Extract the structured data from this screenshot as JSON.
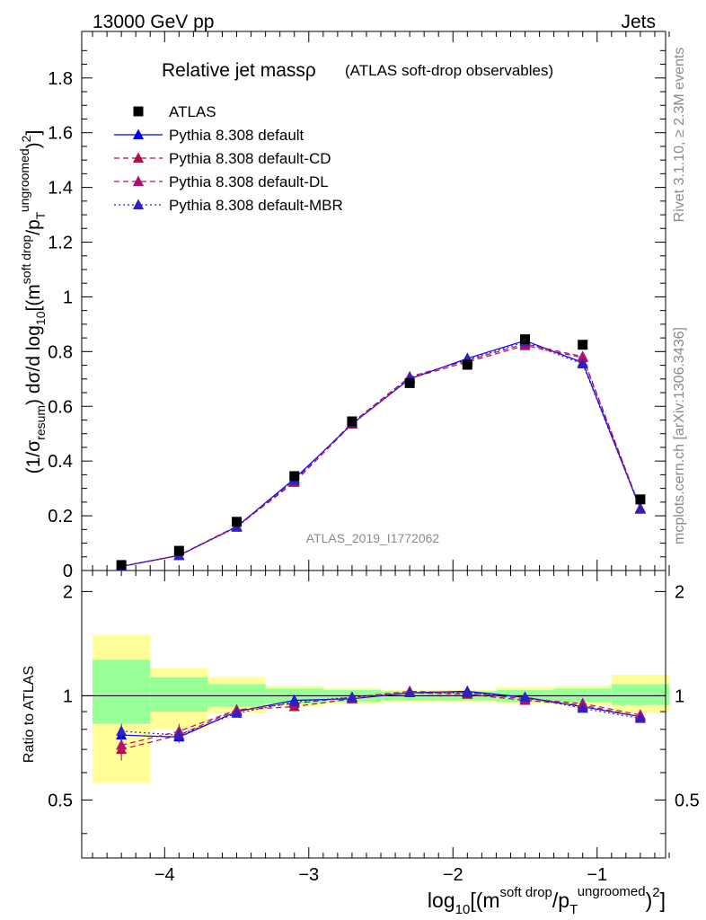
{
  "header": {
    "left": "13000 GeV pp",
    "right": "Jets"
  },
  "plot_title": {
    "main": "Relative jet massρ",
    "sub": "(ATLAS soft-drop observables)"
  },
  "watermark": "ATLAS_2019_I1772062",
  "side_labels": {
    "rivet": "Rivet 3.1.10, ≥ 2.3M events",
    "mcplots": "mcplots.cern.ch [arXiv:1306.3436]"
  },
  "colors": {
    "data": "#000000",
    "default": "#0000ff",
    "cd": "#b01040",
    "dl": "#b01070",
    "mbr": "#3020c0",
    "band_inner": "#99ff99",
    "band_outer": "#ffff99"
  },
  "chart_data": [
    {
      "type": "line",
      "panel": "main",
      "ylabel": "(1/σresum) dσ/d log10[(m^(soft drop)/p_T^(ungroomed))^2]",
      "xlim": [
        -4.575,
        -0.525
      ],
      "ylim": [
        0,
        1.97
      ],
      "yticks": [
        "0",
        "0.2",
        "0.4",
        "0.6",
        "0.8",
        "1",
        "1.2",
        "1.4",
        "1.6",
        "1.8"
      ],
      "x": [
        -4.3,
        -3.9,
        -3.5,
        -3.1,
        -2.7,
        -2.3,
        -1.9,
        -1.5,
        -1.1,
        -0.7
      ],
      "series": [
        {
          "name": "ATLAS",
          "key": "data",
          "style": "markers",
          "values": [
            0.02,
            0.072,
            0.178,
            0.345,
            0.545,
            0.685,
            0.752,
            0.845,
            0.825,
            0.26
          ]
        },
        {
          "name": "Pythia 8.308 default",
          "key": "default",
          "style": "solid",
          "values": [
            0.015,
            0.055,
            0.16,
            0.335,
            0.535,
            0.7,
            0.775,
            0.84,
            0.76,
            0.225
          ]
        },
        {
          "name": "Pythia 8.308 default-CD",
          "key": "cd",
          "style": "dashed",
          "values": [
            0.014,
            0.055,
            0.16,
            0.322,
            0.535,
            0.702,
            0.762,
            0.822,
            0.778,
            0.226
          ]
        },
        {
          "name": "Pythia 8.308 default-DL",
          "key": "dl",
          "style": "dashed",
          "values": [
            0.015,
            0.056,
            0.162,
            0.328,
            0.54,
            0.708,
            0.768,
            0.828,
            0.782,
            0.228
          ]
        },
        {
          "name": "Pythia 8.308 default-MBR",
          "key": "mbr",
          "style": "dotted",
          "values": [
            0.016,
            0.055,
            0.158,
            0.33,
            0.538,
            0.704,
            0.77,
            0.835,
            0.755,
            0.224
          ]
        }
      ]
    },
    {
      "type": "line",
      "panel": "ratio",
      "ylabel": "Ratio to ATLAS",
      "xlabel": "log10[(m^(soft drop)/p_T^(ungroomed))^2]",
      "xlim": [
        -4.575,
        -0.525
      ],
      "ylim": [
        0.34,
        2.3
      ],
      "yticks": [
        "0.5",
        "1",
        "2"
      ],
      "xticks": [
        "−4",
        "−3",
        "−2",
        "−1"
      ],
      "x": [
        -4.3,
        -3.9,
        -3.5,
        -3.1,
        -2.7,
        -2.3,
        -1.9,
        -1.5,
        -1.1,
        -0.7
      ],
      "bins": [
        [
          -4.5,
          -4.1
        ],
        [
          -4.1,
          -3.7
        ],
        [
          -3.7,
          -3.3
        ],
        [
          -3.3,
          -2.9
        ],
        [
          -2.9,
          -2.5
        ],
        [
          -2.5,
          -2.1
        ],
        [
          -2.1,
          -1.7
        ],
        [
          -1.7,
          -1.3
        ],
        [
          -1.3,
          -0.9
        ],
        [
          -0.9,
          -0.5
        ]
      ],
      "band_inner": [
        [
          0.83,
          1.27
        ],
        [
          0.9,
          1.13
        ],
        [
          0.93,
          1.08
        ],
        [
          0.95,
          1.05
        ],
        [
          0.96,
          1.04
        ],
        [
          0.97,
          1.03
        ],
        [
          0.97,
          1.03
        ],
        [
          0.96,
          1.04
        ],
        [
          0.96,
          1.05
        ],
        [
          0.94,
          1.08
        ]
      ],
      "band_outer": [
        [
          0.56,
          1.5
        ],
        [
          0.8,
          1.2
        ],
        [
          0.89,
          1.13
        ],
        [
          0.93,
          1.07
        ],
        [
          0.95,
          1.05
        ],
        [
          0.96,
          1.04
        ],
        [
          0.96,
          1.04
        ],
        [
          0.95,
          1.06
        ],
        [
          0.94,
          1.07
        ],
        [
          0.89,
          1.15
        ]
      ],
      "series": [
        {
          "name": "Pythia 8.308 default",
          "key": "default",
          "style": "solid",
          "values": [
            0.77,
            0.76,
            0.9,
            0.97,
            0.98,
            1.02,
            1.03,
            0.99,
            0.93,
            0.87
          ],
          "err": [
            0.03,
            0.02,
            0.01,
            0.01,
            0.01,
            0.01,
            0.01,
            0.01,
            0.01,
            0.01
          ]
        },
        {
          "name": "Pythia 8.308 default-CD",
          "key": "cd",
          "style": "dashed",
          "values": [
            0.7,
            0.77,
            0.91,
            0.93,
            0.98,
            1.02,
            1.01,
            0.97,
            0.94,
            0.87
          ],
          "err": [
            0.05,
            0.04,
            0.01,
            0.01,
            0.01,
            0.01,
            0.01,
            0.01,
            0.01,
            0.01
          ]
        },
        {
          "name": "Pythia 8.308 default-DL",
          "key": "dl",
          "style": "dashed",
          "values": [
            0.72,
            0.79,
            0.91,
            0.95,
            0.99,
            1.03,
            1.02,
            0.98,
            0.95,
            0.88
          ],
          "err": [
            0.05,
            0.04,
            0.01,
            0.01,
            0.01,
            0.01,
            0.01,
            0.01,
            0.01,
            0.01
          ]
        },
        {
          "name": "Pythia 8.308 default-MBR",
          "key": "mbr",
          "style": "dotted",
          "values": [
            0.79,
            0.77,
            0.89,
            0.96,
            0.99,
            1.02,
            1.02,
            0.99,
            0.92,
            0.86
          ],
          "err": [
            0.04,
            0.03,
            0.01,
            0.01,
            0.01,
            0.01,
            0.01,
            0.01,
            0.01,
            0.01
          ]
        }
      ]
    }
  ]
}
